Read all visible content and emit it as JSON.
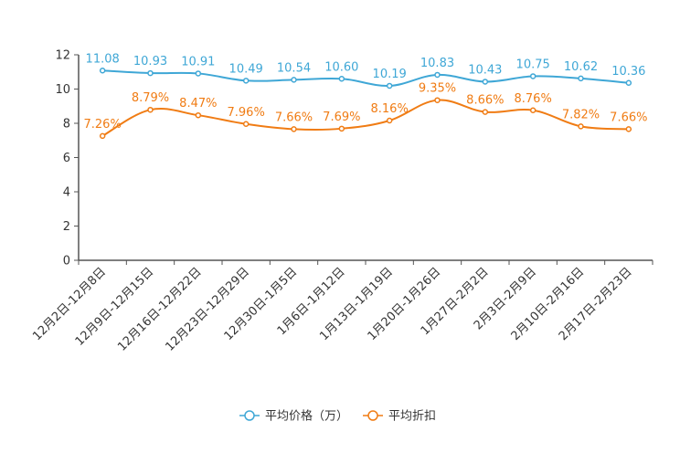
{
  "chart_data": {
    "type": "line",
    "title": "",
    "xlabel": "",
    "ylabel": "",
    "ylim": [
      0,
      12
    ],
    "yticks": [
      "0",
      "2",
      "4",
      "6",
      "8",
      "10",
      "12"
    ],
    "grid": false,
    "legend_position": "bottom-center",
    "categories": [
      "12月2日-12月8日",
      "12月9日-12月15日",
      "12月16日-12月22日",
      "12月23日-12月29日",
      "12月30日-1月5日",
      "1月6日-1月12日",
      "1月13日-1月19日",
      "1月20日-1月26日",
      "1月27日-2月2日",
      "2月3日-2月9日",
      "2月10日-2月16日",
      "2月17日-2月23日"
    ],
    "series": [
      {
        "name": "平均价格（万）",
        "color": "#3fa7d6",
        "values": [
          11.08,
          10.93,
          10.91,
          10.49,
          10.54,
          10.6,
          10.19,
          10.83,
          10.43,
          10.75,
          10.62,
          10.36
        ],
        "labels": [
          "11.08",
          "10.93",
          "10.91",
          "10.49",
          "10.54",
          "10.60",
          "10.19",
          "10.83",
          "10.43",
          "10.75",
          "10.62",
          "10.36"
        ]
      },
      {
        "name": "平均折扣",
        "color": "#f07c14",
        "values": [
          7.26,
          8.79,
          8.47,
          7.96,
          7.66,
          7.69,
          8.16,
          9.35,
          8.66,
          8.76,
          7.82,
          7.66
        ],
        "labels": [
          "7.26%",
          "8.79%",
          "8.47%",
          "7.96%",
          "7.66%",
          "7.69%",
          "8.16%",
          "9.35%",
          "8.66%",
          "8.76%",
          "7.82%",
          "7.66%"
        ]
      }
    ]
  }
}
